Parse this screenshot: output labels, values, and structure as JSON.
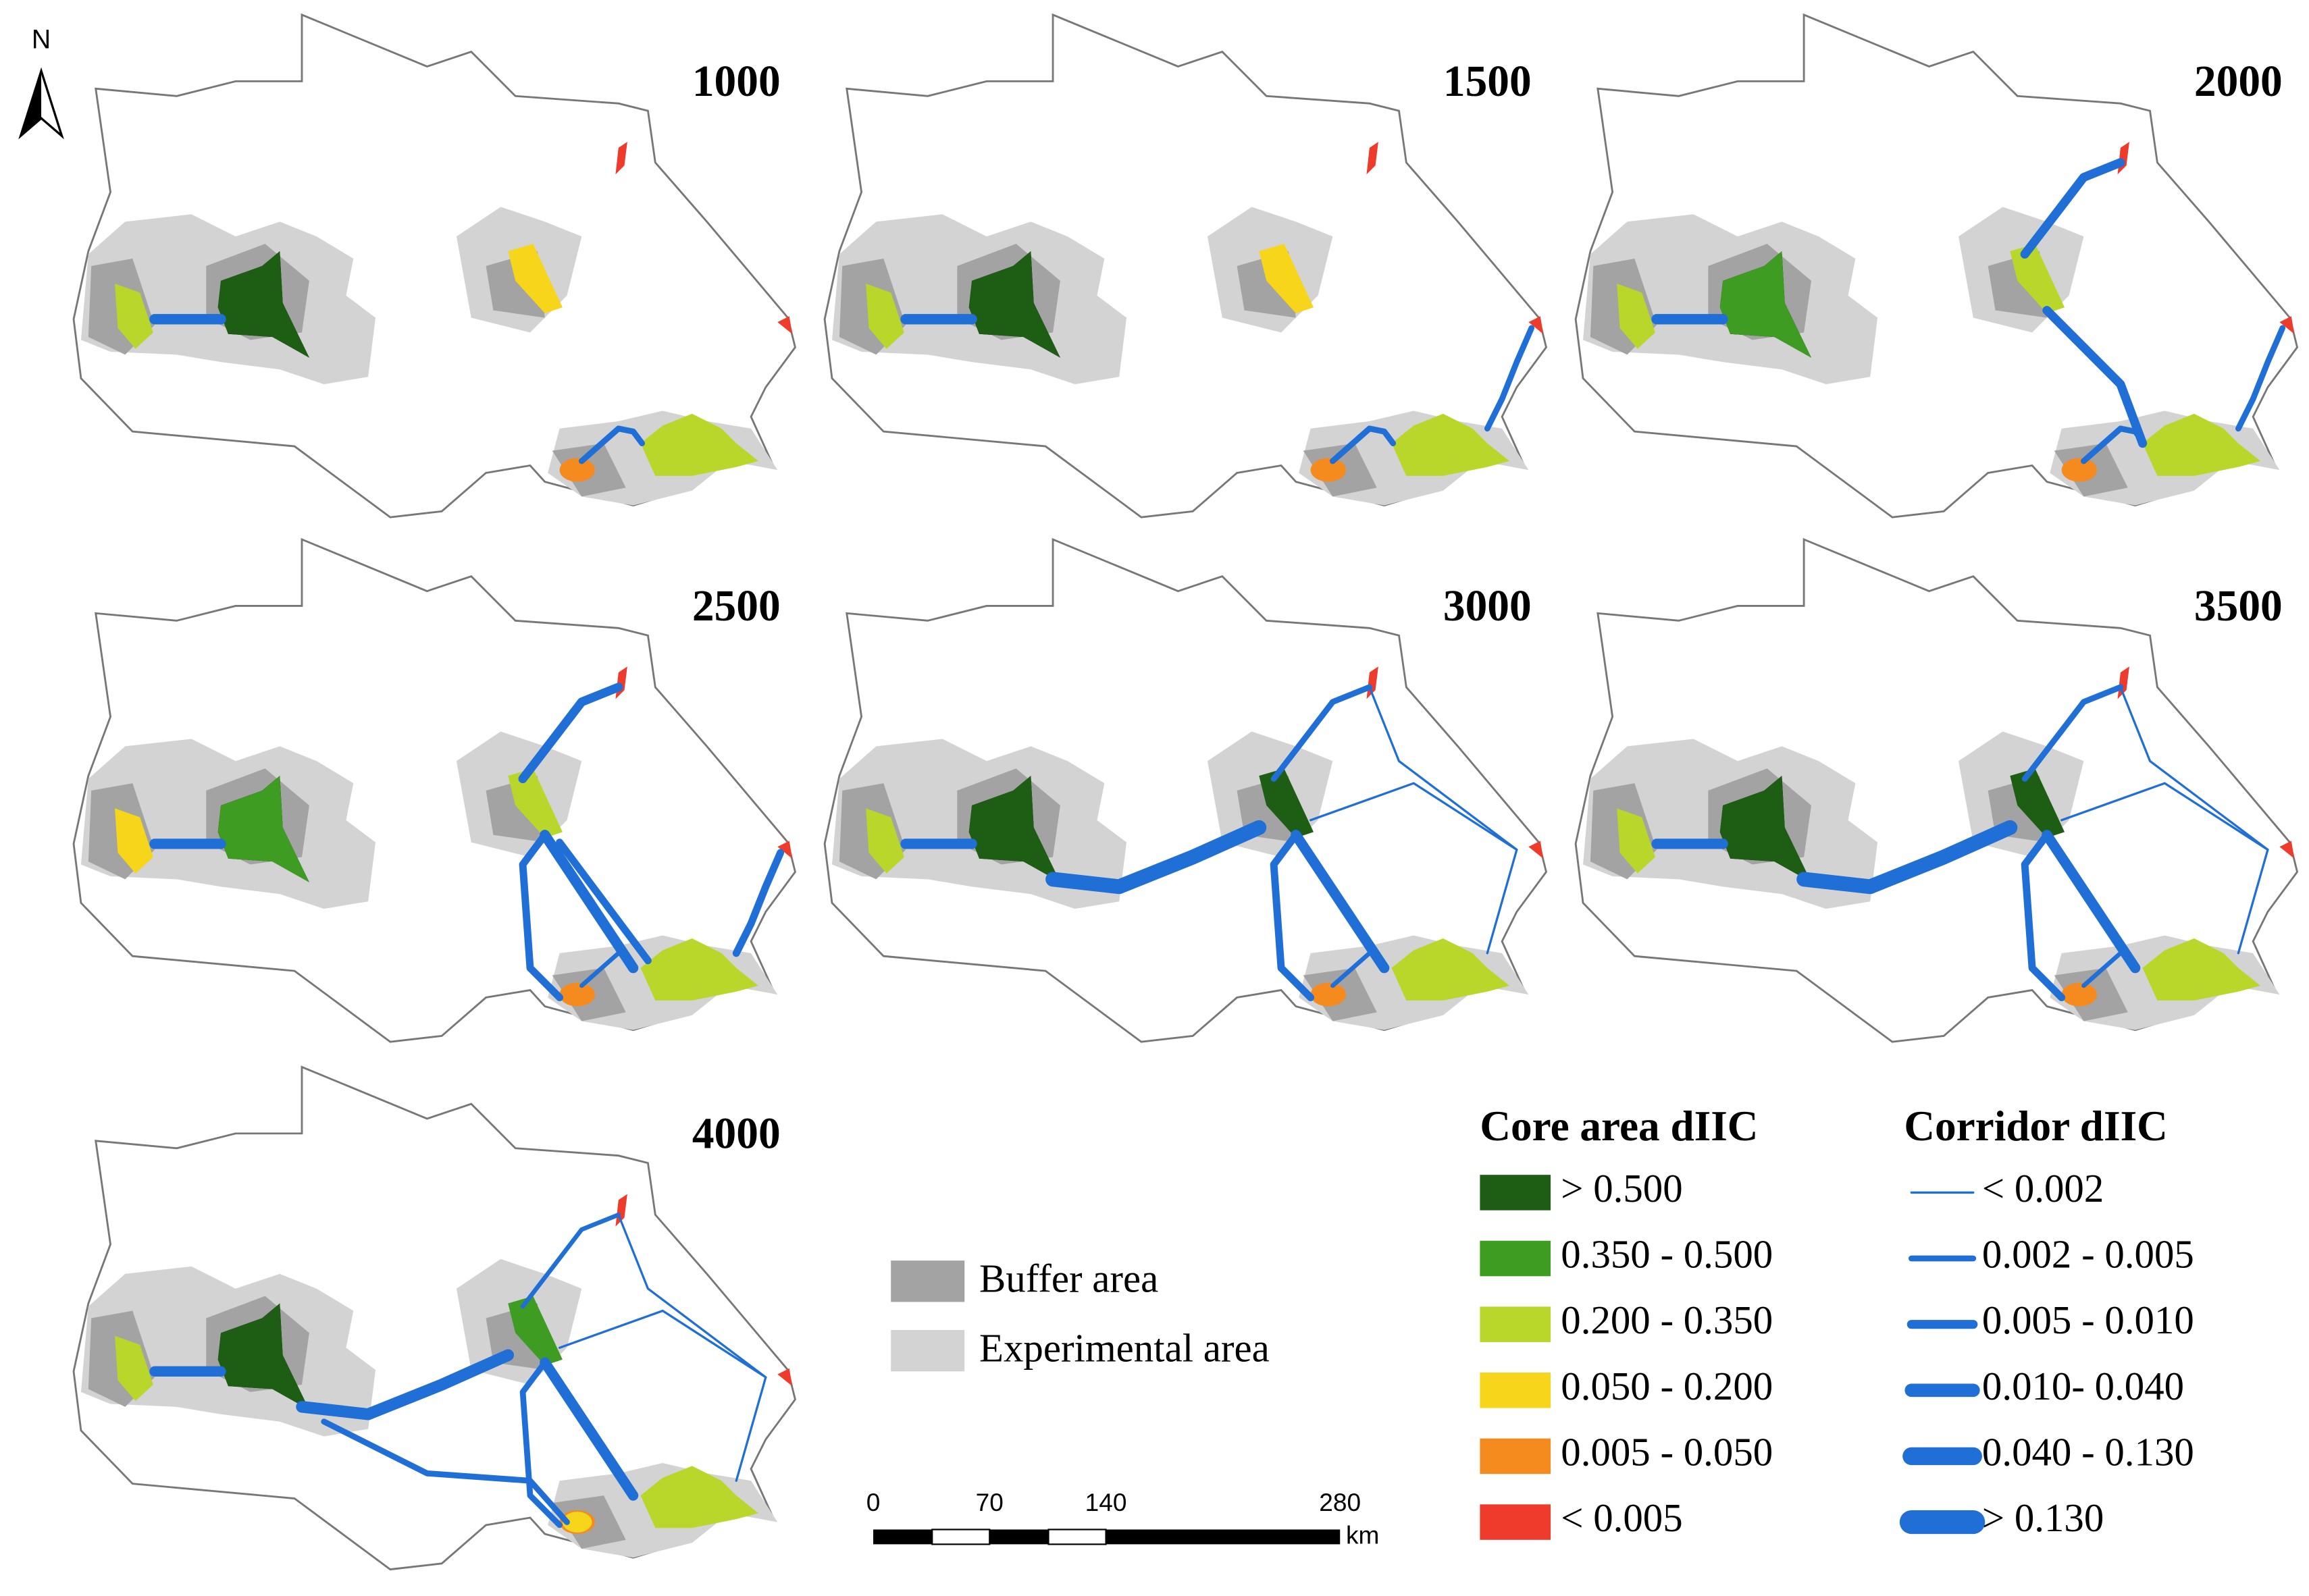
{
  "north": "N",
  "panels": [
    "1000",
    "1500",
    "2000",
    "2500",
    "3000",
    "3500",
    "4000"
  ],
  "area_legend": [
    {
      "label": "Buffer area",
      "color": "#a3a3a3"
    },
    {
      "label": "Experimental area",
      "color": "#d3d3d3"
    }
  ],
  "core_legend": {
    "title": "Core area dIIC",
    "items": [
      {
        "label": "> 0.500",
        "color": "#1d5e14"
      },
      {
        "label": "0.350 - 0.500",
        "color": "#3f9c22"
      },
      {
        "label": "0.200 - 0.350",
        "color": "#b9d62b"
      },
      {
        "label": "0.050 - 0.200",
        "color": "#f7d51b"
      },
      {
        "label": "0.005 - 0.050",
        "color": "#f58a1f"
      },
      {
        "label": "< 0.005",
        "color": "#ef3b2c"
      }
    ]
  },
  "corridor_legend": {
    "title": "Corridor dIIC",
    "color": "#1f6fd6",
    "items": [
      "< 0.002",
      "0.002 - 0.005",
      "0.005 - 0.010",
      "0.010- 0.040",
      "0.040 - 0.130",
      "> 0.130"
    ]
  },
  "scale_bar": {
    "ticks": [
      "0",
      "70",
      "140",
      "280"
    ],
    "unit": "km"
  }
}
